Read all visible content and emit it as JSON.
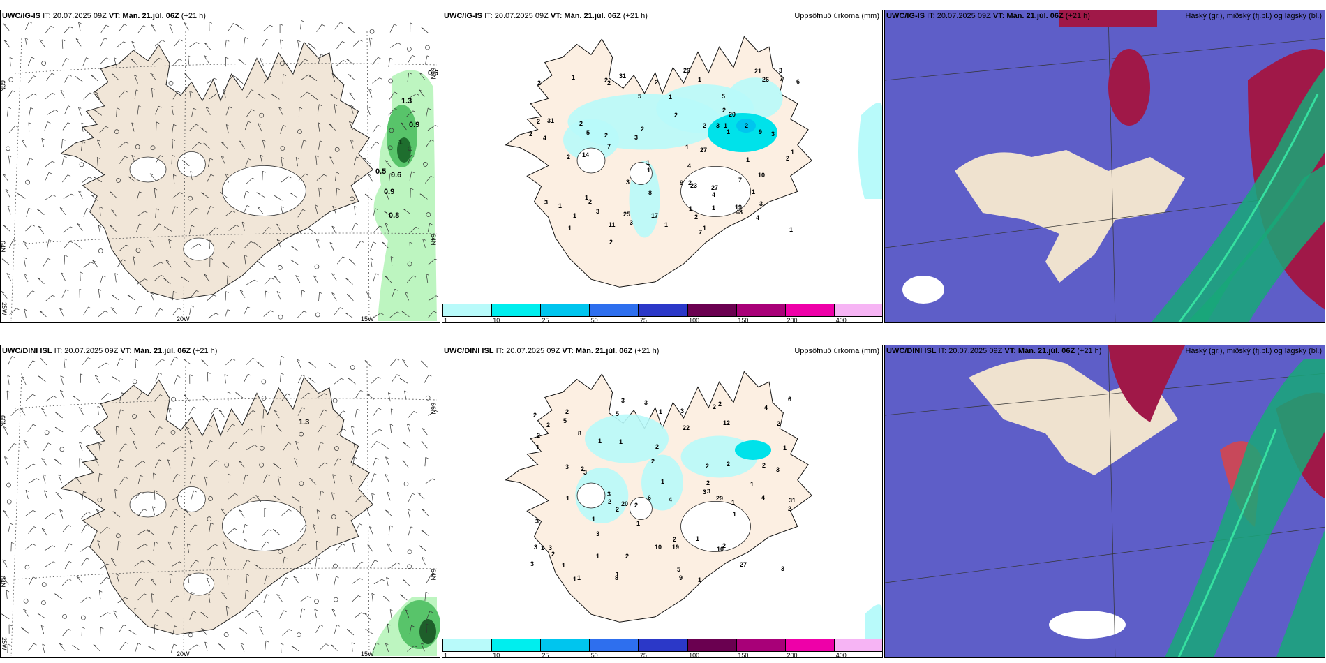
{
  "rows": [
    {
      "model": "UWC/IG-IS",
      "wind": {
        "model": "UWC/IG-IS",
        "it_label": "IT: 20.07.2025 09Z",
        "vt_label": "VT: Mán. 21.júl. 06Z",
        "lead": "(+21 h)",
        "labels": [
          "0.6",
          "1.3",
          "0.9",
          "1",
          "0.5",
          "0.6",
          "0.9",
          "0.8"
        ]
      },
      "precip": {
        "model": "UWC/IG-IS",
        "it_label": "IT: 20.07.2025 09Z",
        "vt_label": "VT: Mán. 21.júl. 06Z",
        "lead": "(+21 h)",
        "title": "Uppsöfnuð úrkoma (mm)",
        "values": [
          "1",
          "2",
          "2",
          "2",
          "2",
          "2",
          "2",
          "7",
          "1",
          "3",
          "1",
          "2",
          "1",
          "2",
          "1",
          "21",
          "4",
          "26",
          "7",
          "9",
          "19",
          "23",
          "11",
          "48",
          "27",
          "20",
          "14",
          "5",
          "1",
          "5",
          "4",
          "3",
          "5",
          "25",
          "31",
          "17",
          "29",
          "31",
          "1",
          "27",
          "2",
          "1",
          "6",
          "3",
          "1",
          "10",
          "9",
          "8",
          "4",
          "7",
          "3",
          "2",
          "2",
          "2",
          "2",
          "1",
          "4",
          "2",
          "2",
          "3",
          "2",
          "7",
          "1",
          "2",
          "2",
          "1",
          "1",
          "1",
          "1",
          "3",
          "3",
          "2",
          "1",
          "1",
          "3",
          "1",
          "1",
          "1",
          "3"
        ]
      },
      "cloud": {
        "model": "UWC/IG-IS",
        "it_label": "IT: 20.07.2025 09Z",
        "vt_label": "VT: Mán. 21.júl. 06Z",
        "lead": "(+21 h)",
        "title": "Háský (gr.), miðský (fj.bl.) og lágský (bl.)"
      }
    },
    {
      "model": "UWC/DINI ISL",
      "wind": {
        "model": "UWC/DINI ISL",
        "it_label": "IT: 20.07.2025 09Z",
        "vt_label": "VT: Mán. 21.júl. 06Z",
        "lead": "(+21 h)",
        "labels": [
          "1.3"
        ]
      },
      "precip": {
        "model": "UWC/DINI ISL",
        "it_label": "IT: 20.07.2025 09Z",
        "vt_label": "VT: Mán. 21.júl. 06Z",
        "lead": "(+21 h)",
        "title": "Uppsöfnuð úrkoma (mm)",
        "values": [
          "1",
          "2",
          "4",
          "2",
          "1",
          "3",
          "2",
          "2",
          "1",
          "3",
          "10",
          "5",
          "2",
          "1",
          "3",
          "2",
          "4",
          "1",
          "3",
          "9",
          "2",
          "2",
          "3",
          "2",
          "1",
          "22",
          "31",
          "29",
          "3",
          "3",
          "2",
          "1",
          "27",
          "5",
          "8",
          "20",
          "6",
          "1",
          "2",
          "2",
          "5",
          "6",
          "19",
          "12",
          "3",
          "3",
          "8",
          "2",
          "2",
          "10",
          "2",
          "2",
          "1",
          "2",
          "1",
          "3",
          "3",
          "2",
          "1",
          "4",
          "2",
          "2",
          "1",
          "1",
          "3",
          "1",
          "2",
          "3",
          "3",
          "1",
          "1",
          "1",
          "1",
          "2",
          "3",
          "1",
          "1"
        ]
      },
      "cloud": {
        "model": "UWC/DINI ISL",
        "it_label": "IT: 20.07.2025 09Z",
        "vt_label": "VT: Mán. 21.júl. 06Z",
        "lead": "(+21 h)",
        "title": "Háský (gr.), miðský (fj.bl.) og lágský (bl.)"
      }
    }
  ],
  "axes": {
    "lat_66": "66N",
    "lat_64": "64N",
    "lon_25": "25W",
    "lon_20": "20W",
    "lon_15": "15W"
  },
  "colorbar": {
    "ticks": [
      "1",
      "10",
      "25",
      "50",
      "75",
      "100",
      "150",
      "200",
      "400"
    ],
    "colors": [
      "#b8fafa",
      "#00eeee",
      "#00c5ee",
      "#2e6fee",
      "#2b38c8",
      "#6a0050",
      "#a80078",
      "#ee00a8",
      "#f6b4f4"
    ]
  },
  "colors": {
    "land": "#f1e6d8",
    "land_precip": "#fcefe2",
    "ocean_cloud": "#5e5ec8",
    "high_cloud": "#a01848",
    "low_cloud": "#18a878"
  }
}
